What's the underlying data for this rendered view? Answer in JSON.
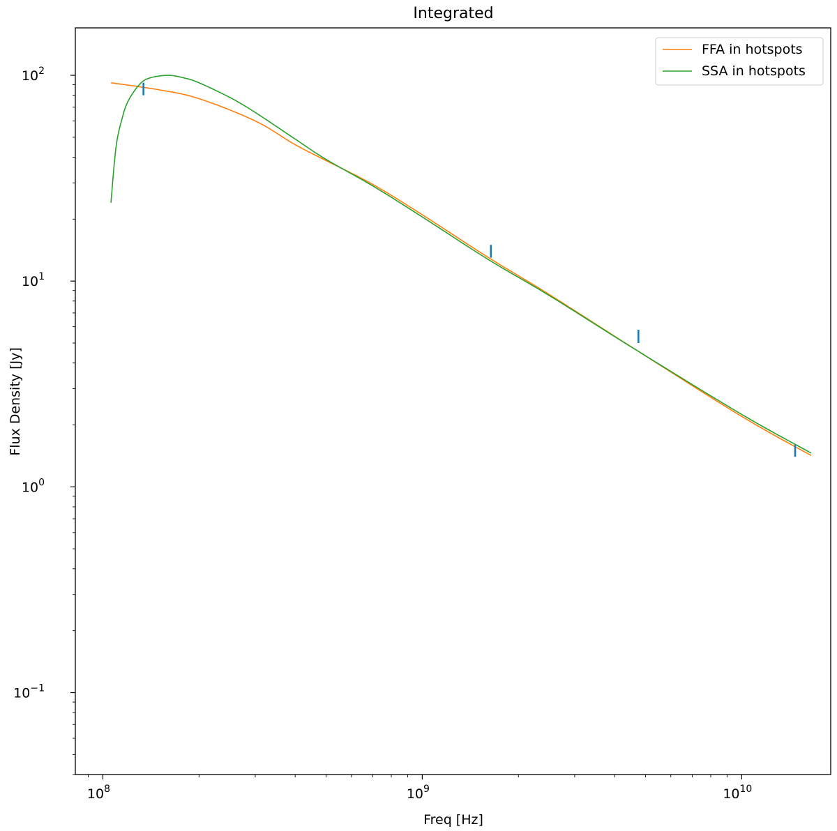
{
  "chart_data": {
    "type": "line",
    "title": "Integrated",
    "xlabel": "Freq [Hz]",
    "ylabel": "Flux Density [Jy]",
    "xscale": "log",
    "yscale": "log",
    "xlim": [
      82000000.0,
      19000000000.0
    ],
    "ylim": [
      0.04,
      170
    ],
    "x_ticks": [
      {
        "value": 100000000.0,
        "base": "10",
        "exp": "8"
      },
      {
        "value": 1000000000.0,
        "base": "10",
        "exp": "9"
      },
      {
        "value": 10000000000.0,
        "base": "10",
        "exp": "10"
      }
    ],
    "y_ticks": [
      {
        "value": 100,
        "base": "10",
        "exp": "2"
      },
      {
        "value": 10,
        "base": "10",
        "exp": "1"
      },
      {
        "value": 1,
        "base": "10",
        "exp": "0"
      },
      {
        "value": 0.1,
        "base": "10",
        "exp": "−1"
      }
    ],
    "legend_position": "top-right",
    "series": [
      {
        "name": "FFA in hotspots",
        "color": "#ff7f0e",
        "x": [
          106000000.0,
          150000000.0,
          200000000.0,
          300000000.0,
          400000000.0,
          500000000.0,
          700000000.0,
          1000000000.0,
          1600000000.0,
          2500000000.0,
          4700000000.0,
          10000000000.0,
          16500000000.0
        ],
        "y": [
          92,
          85,
          77,
          60,
          46,
          38.5,
          29.5,
          21,
          13.1,
          8.6,
          4.6,
          2.2,
          1.42
        ]
      },
      {
        "name": "SSA in hotspots",
        "color": "#2ca02c",
        "x": [
          106000000.0,
          110000000.0,
          115000000.0,
          120000000.0,
          130000000.0,
          140000000.0,
          160000000.0,
          180000000.0,
          200000000.0,
          250000000.0,
          300000000.0,
          400000000.0,
          500000000.0,
          700000000.0,
          1000000000.0,
          1600000000.0,
          2500000000.0,
          4700000000.0,
          10000000000.0,
          16500000000.0
        ],
        "y": [
          24,
          45,
          62,
          75,
          90,
          97,
          100,
          97,
          92,
          78,
          66,
          49,
          39,
          29,
          20.5,
          12.8,
          8.5,
          4.6,
          2.25,
          1.46
        ]
      },
      {
        "name": "",
        "color": "#1f77b4",
        "kind": "errorbar",
        "x": [
          134000000.0,
          1640000000.0,
          4750000000.0,
          14700000000.0
        ],
        "y": [
          86,
          14,
          5.4,
          1.5
        ],
        "err_low": [
          80,
          13,
          5.0,
          1.4
        ],
        "err_high": [
          92,
          15,
          5.8,
          1.6
        ]
      }
    ]
  }
}
